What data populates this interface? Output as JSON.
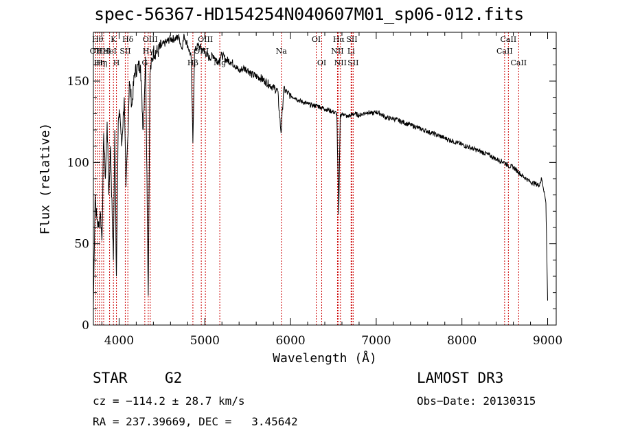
{
  "chart_data": {
    "type": "line",
    "title": "spec-56367-HD154254N040607M01_sp06-012.fits",
    "xlabel": "Wavelength (Å)",
    "ylabel": "Flux (relative)",
    "xlim": [
      3700,
      9100
    ],
    "ylim": [
      0,
      180
    ],
    "xticks": [
      4000,
      5000,
      6000,
      7000,
      8000,
      9000
    ],
    "yticks": [
      0,
      50,
      100,
      150
    ],
    "series": [
      {
        "name": "spectrum",
        "x": [
          3700,
          3720,
          3740,
          3760,
          3780,
          3800,
          3820,
          3840,
          3860,
          3880,
          3900,
          3920,
          3933,
          3950,
          3968,
          3990,
          4010,
          4030,
          4060,
          4080,
          4101,
          4120,
          4150,
          4180,
          4210,
          4250,
          4280,
          4310,
          4340,
          4360,
          4400,
          4450,
          4500,
          4550,
          4600,
          4650,
          4700,
          4730,
          4760,
          4800,
          4840,
          4861,
          4880,
          4920,
          4960,
          5000,
          5050,
          5100,
          5150,
          5200,
          5250,
          5300,
          5350,
          5400,
          5450,
          5500,
          5550,
          5600,
          5650,
          5700,
          5750,
          5800,
          5850,
          5890,
          5920,
          5960,
          6000,
          6050,
          6100,
          6150,
          6200,
          6250,
          6300,
          6350,
          6400,
          6450,
          6500,
          6540,
          6563,
          6580,
          6620,
          6660,
          6700,
          6750,
          6800,
          6850,
          6900,
          6950,
          7000,
          7050,
          7100,
          7150,
          7200,
          7300,
          7400,
          7500,
          7600,
          7700,
          7800,
          7900,
          8000,
          8100,
          8200,
          8300,
          8400,
          8500,
          8540,
          8600,
          8662,
          8700,
          8750,
          8800,
          8850,
          8900,
          8930,
          8960,
          8980,
          8990,
          9000
        ],
        "y": [
          12,
          80,
          65,
          60,
          70,
          52,
          118,
          90,
          125,
          80,
          110,
          65,
          40,
          120,
          30,
          125,
          130,
          110,
          140,
          85,
          115,
          150,
          135,
          155,
          158,
          160,
          120,
          165,
          18,
          155,
          168,
          168,
          172,
          174,
          176,
          176,
          177,
          170,
          178,
          172,
          165,
          112,
          168,
          172,
          170,
          168,
          164,
          166,
          162,
          166,
          163,
          162,
          160,
          156,
          158,
          157,
          154,
          153,
          152,
          150,
          148,
          146,
          144,
          118,
          145,
          143,
          141,
          140,
          138,
          137,
          136,
          135,
          135,
          134,
          133,
          132,
          131,
          130,
          68,
          129,
          130,
          128,
          129,
          130,
          129,
          130,
          131,
          130,
          131,
          130,
          128,
          127,
          127,
          125,
          123,
          121,
          119,
          117,
          115,
          113,
          111,
          109,
          107,
          105,
          102,
          100,
          98,
          97,
          94,
          92,
          90,
          88,
          87,
          86,
          90,
          82,
          75,
          45,
          15
        ]
      }
    ],
    "line_marks": [
      {
        "wave": 3728,
        "label": "OII",
        "row": 2
      },
      {
        "wave": 3750,
        "label": "Hθ",
        "row": 1
      },
      {
        "wave": 3771,
        "label": "Hη",
        "row": 3
      },
      {
        "wave": 3798,
        "label": "Hη",
        "row": 3
      },
      {
        "wave": 3820,
        "label": "HeI",
        "row": 2
      },
      {
        "wave": 3889,
        "label": "HeI",
        "row": 2
      },
      {
        "wave": 3934,
        "label": "K",
        "row": 1
      },
      {
        "wave": 3969,
        "label": "H",
        "row": 3
      },
      {
        "wave": 4072,
        "label": "SII",
        "row": 2
      },
      {
        "wave": 4102,
        "label": "Hδ",
        "row": 1
      },
      {
        "wave": 4300,
        "label": "G",
        "row": 3
      },
      {
        "wave": 4340,
        "label": "Hγ",
        "row": 2
      },
      {
        "wave": 4363,
        "label": "OIII",
        "row": 1
      },
      {
        "wave": 4861,
        "label": "Hβ",
        "row": 3
      },
      {
        "wave": 4959,
        "label": "OIII",
        "row": 2
      },
      {
        "wave": 5007,
        "label": "OIII",
        "row": 1
      },
      {
        "wave": 5175,
        "label": "Mg",
        "row": 3
      },
      {
        "wave": 5893,
        "label": "Na",
        "row": 2
      },
      {
        "wave": 6300,
        "label": "OI",
        "row": 1
      },
      {
        "wave": 6364,
        "label": "OI",
        "row": 3
      },
      {
        "wave": 6548,
        "label": "NII",
        "row": 2
      },
      {
        "wave": 6563,
        "label": "Hα",
        "row": 1
      },
      {
        "wave": 6583,
        "label": "NII",
        "row": 3
      },
      {
        "wave": 6707,
        "label": "Li",
        "row": 2
      },
      {
        "wave": 6716,
        "label": "SII",
        "row": 1
      },
      {
        "wave": 6731,
        "label": "SII",
        "row": 3
      },
      {
        "wave": 8498,
        "label": "CaII",
        "row": 2
      },
      {
        "wave": 8542,
        "label": "CaII",
        "row": 1
      },
      {
        "wave": 8662,
        "label": "CaII",
        "row": 3
      }
    ]
  },
  "info": {
    "class": "STAR",
    "subclass": "G2",
    "survey": "LAMOST DR3",
    "cz": "cz = −114.2 ± 28.7 km/s",
    "obs_date": "Obs−Date: 20130315",
    "radec": "RA = 237.39669, DEC =   3.45642"
  },
  "colors": {
    "line": "#000000",
    "marker": "#cc0000",
    "axis": "#000000"
  }
}
